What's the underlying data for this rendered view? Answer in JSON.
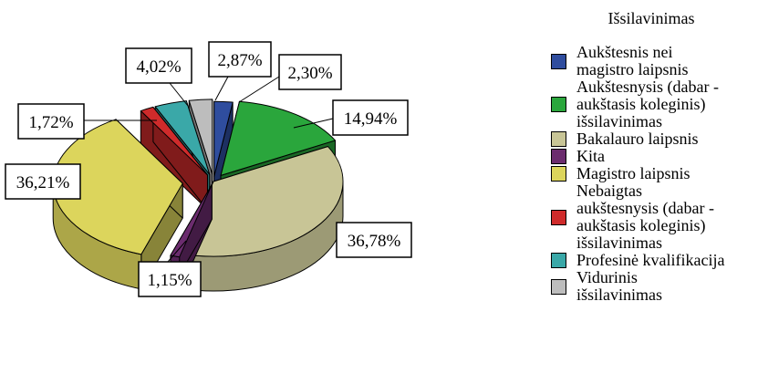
{
  "chart_data": {
    "type": "pie",
    "title": "Išsilavinimas",
    "series": [
      {
        "name": "Aukštesnis nei magistro laipsnis",
        "value": 2.3,
        "label": "2,30%",
        "color": "#2f4d9e"
      },
      {
        "name": "Aukštesnysis (dabar - aukštasis koleginis) išsilavinimas",
        "value": 14.94,
        "label": "14,94%",
        "color": "#2aa63c"
      },
      {
        "name": "Bakalauro laipsnis",
        "value": 36.78,
        "label": "36,78%",
        "color": "#c8c596"
      },
      {
        "name": "Kita",
        "value": 1.15,
        "label": "1,15%",
        "color": "#6b2c6e"
      },
      {
        "name": "Magistro laipsnis",
        "value": 36.21,
        "label": "36,21%",
        "color": "#dcd55c"
      },
      {
        "name": "Nebaigtas aukštesnysis (dabar - aukštasis koleginis) išsilavinimas",
        "value": 1.72,
        "label": "1,72%",
        "color": "#cf2b2b"
      },
      {
        "name": "Profesinė kvalifikacija",
        "value": 4.02,
        "label": "4,02%",
        "color": "#3aa8a8"
      },
      {
        "name": "Vidurinis išsilavinimas",
        "value": 2.87,
        "label": "2,87%",
        "color": "#bdbdbd"
      }
    ],
    "style": "3d-exploded",
    "legend": "right"
  },
  "legend": {
    "title": "Išsilavinimas",
    "items": [
      {
        "lines": [
          "Aukštesnis nei",
          "magistro laipsnis"
        ],
        "color": "#2f4d9e"
      },
      {
        "lines": [
          "Aukštesnysis (dabar -",
          "aukštasis koleginis)",
          "išsilavinimas"
        ],
        "color": "#2aa63c"
      },
      {
        "lines": [
          "Bakalauro laipsnis"
        ],
        "color": "#c8c596"
      },
      {
        "lines": [
          "Kita"
        ],
        "color": "#6b2c6e"
      },
      {
        "lines": [
          "Magistro laipsnis"
        ],
        "color": "#dcd55c"
      },
      {
        "lines": [
          "Nebaigtas",
          "aukštesnysis (dabar -",
          "aukštasis koleginis)",
          "išsilavinimas"
        ],
        "color": "#cf2b2b"
      },
      {
        "lines": [
          "Profesinė kvalifikacija"
        ],
        "color": "#3aa8a8"
      },
      {
        "lines": [
          "Vidurinis",
          "išsilavinimas"
        ],
        "color": "#bdbdbd"
      }
    ]
  }
}
